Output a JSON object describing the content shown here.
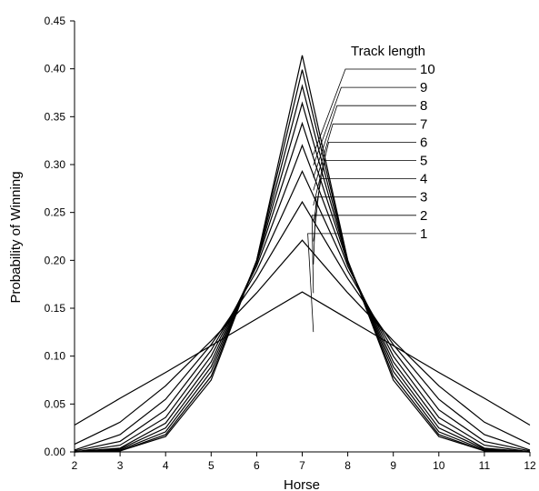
{
  "chart_data": {
    "type": "line",
    "xlabel": "Horse",
    "ylabel": "Probability of Winning",
    "x": [
      2,
      3,
      4,
      5,
      6,
      7,
      8,
      9,
      10,
      11,
      12
    ],
    "xlim": [
      2,
      12
    ],
    "ylim": [
      0,
      0.45
    ],
    "x_ticks": [
      "2",
      "3",
      "4",
      "5",
      "6",
      "7",
      "8",
      "9",
      "10",
      "11",
      "12"
    ],
    "y_ticks": [
      "0.00",
      "0.05",
      "0.10",
      "0.15",
      "0.20",
      "0.25",
      "0.30",
      "0.35",
      "0.40",
      "0.45"
    ],
    "grid": false,
    "legend_title": "Track length",
    "legend_placement": "top-right",
    "line_color": "#000000",
    "series": [
      {
        "name": "1",
        "values": [
          0.028,
          0.056,
          0.083,
          0.111,
          0.139,
          0.167,
          0.139,
          0.111,
          0.083,
          0.056,
          0.028
        ]
      },
      {
        "name": "2",
        "values": [
          0.008,
          0.031,
          0.069,
          0.116,
          0.166,
          0.221,
          0.166,
          0.116,
          0.069,
          0.031,
          0.008
        ]
      },
      {
        "name": "3",
        "values": [
          0.002,
          0.018,
          0.055,
          0.112,
          0.181,
          0.261,
          0.181,
          0.112,
          0.055,
          0.018,
          0.002
        ]
      },
      {
        "name": "4",
        "values": [
          0.001,
          0.011,
          0.044,
          0.106,
          0.189,
          0.293,
          0.189,
          0.106,
          0.044,
          0.011,
          0.001
        ]
      },
      {
        "name": "5",
        "values": [
          0.0,
          0.007,
          0.036,
          0.1,
          0.194,
          0.32,
          0.194,
          0.1,
          0.036,
          0.007,
          0.0
        ]
      },
      {
        "name": "6",
        "values": [
          0.0,
          0.004,
          0.03,
          0.094,
          0.197,
          0.343,
          0.197,
          0.094,
          0.03,
          0.004,
          0.0
        ]
      },
      {
        "name": "7",
        "values": [
          0.0,
          0.003,
          0.025,
          0.089,
          0.198,
          0.364,
          0.198,
          0.089,
          0.025,
          0.003,
          0.0
        ]
      },
      {
        "name": "8",
        "values": [
          0.0,
          0.002,
          0.021,
          0.084,
          0.199,
          0.382,
          0.199,
          0.084,
          0.021,
          0.002,
          0.0
        ]
      },
      {
        "name": "9",
        "values": [
          0.0,
          0.001,
          0.018,
          0.079,
          0.2,
          0.399,
          0.2,
          0.079,
          0.018,
          0.001,
          0.0
        ]
      },
      {
        "name": "10",
        "values": [
          0.0,
          0.001,
          0.016,
          0.075,
          0.2,
          0.414,
          0.2,
          0.075,
          0.016,
          0.001,
          0.0
        ]
      }
    ]
  }
}
